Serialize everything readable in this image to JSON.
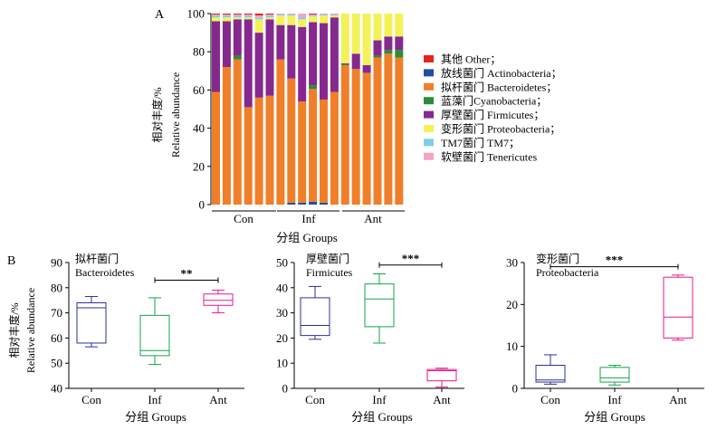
{
  "panel_labels": {
    "a": "A",
    "b": "B"
  },
  "colors": {
    "other": "#e52421",
    "actinobacteria": "#1f4fa0",
    "bacteroidetes": "#f07f2a",
    "cyanobacteria": "#2e8b3a",
    "firmicutes": "#85298f",
    "proteobacteria": "#f3f25a",
    "tm7": "#7fcfe0",
    "tenericutes": "#f2a6c7",
    "box_con": "#2e3192",
    "box_inf": "#13a54a",
    "box_ant": "#e6198c"
  },
  "chart_data": [
    {
      "type": "bar",
      "stacked": true,
      "panel": "A",
      "ylabel_cn": "相对丰度/%",
      "ylabel_en": "Relative abundance",
      "xlabel": "分组 Groups",
      "ylim": [
        0,
        100
      ],
      "yticks": [
        0,
        20,
        40,
        60,
        80,
        100
      ],
      "groups": [
        {
          "label": "Con",
          "count": 6
        },
        {
          "label": "Inf",
          "count": 6
        },
        {
          "label": "Ant",
          "count": 6
        }
      ],
      "legend": [
        {
          "key": "other",
          "label": "其他 Other；"
        },
        {
          "key": "actinobacteria",
          "label": "放线菌门 Actinobacteria；"
        },
        {
          "key": "bacteroidetes",
          "label": "拟杆菌门 Bacteroidetes；"
        },
        {
          "key": "cyanobacteria",
          "label": "蓝藻门Cyanobacteria；"
        },
        {
          "key": "firmicutes",
          "label": "厚壁菌门 Firmicutes；"
        },
        {
          "key": "proteobacteria",
          "label": "变形菌门 Proteobacteria；"
        },
        {
          "key": "tm7",
          "label": "TM7菌门 TM7；"
        },
        {
          "key": "tenericutes",
          "label": "软壁菌门 Tenericutes"
        }
      ],
      "series": [
        {
          "key": "actinobacteria",
          "values": [
            0,
            0,
            0,
            0,
            0,
            0,
            0,
            1,
            1,
            1.5,
            1,
            0,
            0,
            0,
            0,
            0,
            0,
            0
          ]
        },
        {
          "key": "bacteroidetes",
          "values": [
            59,
            72,
            76,
            51,
            56,
            57,
            76,
            65,
            53,
            59,
            54,
            59,
            73,
            71,
            69,
            77,
            79,
            77
          ]
        },
        {
          "key": "cyanobacteria",
          "values": [
            0,
            0,
            2,
            0,
            0,
            0,
            0,
            0,
            0,
            2,
            0,
            0,
            0.5,
            0,
            0,
            1,
            2,
            4
          ]
        },
        {
          "key": "firmicutes",
          "values": [
            37,
            24,
            19,
            46,
            34,
            40,
            18,
            28,
            39,
            33,
            40,
            39,
            0.5,
            8,
            4,
            8,
            7,
            7
          ]
        },
        {
          "key": "proteobacteria",
          "values": [
            2,
            2,
            1,
            1,
            7,
            1,
            5,
            5,
            4,
            3,
            4,
            1,
            26,
            21,
            27,
            14,
            12,
            12
          ]
        },
        {
          "key": "tm7",
          "values": [
            1,
            1,
            1,
            1,
            1,
            1,
            0.5,
            0.5,
            1,
            0.5,
            0.5,
            0.5,
            0,
            0,
            0,
            0,
            0,
            0
          ]
        },
        {
          "key": "tenericutes",
          "values": [
            0.5,
            0.5,
            0.5,
            0.5,
            1,
            0.5,
            0.5,
            0.5,
            2,
            0.5,
            0.5,
            0.5,
            0,
            0,
            0,
            0,
            0,
            0
          ]
        },
        {
          "key": "other",
          "values": [
            0.5,
            0.5,
            0.5,
            0.5,
            1,
            0.5,
            0,
            0,
            0,
            0.5,
            0,
            0,
            0,
            0,
            0,
            0,
            0,
            0
          ]
        }
      ]
    },
    {
      "type": "box",
      "panel": "B1",
      "title_cn": "拟杆菌门",
      "title_en": "Bacteroidetes",
      "ylabel_cn": "相对丰度/%",
      "ylabel_en": "Relative abundance",
      "xlabel": "分组 Groups",
      "ylim": [
        40,
        90
      ],
      "yticks": [
        40,
        50,
        60,
        70,
        80,
        90
      ],
      "categories": [
        "Con",
        "Inf",
        "Ant"
      ],
      "boxes": [
        {
          "min": 56.5,
          "q1": 58,
          "median": 72,
          "q3": 74,
          "max": 76.5
        },
        {
          "min": 49.5,
          "q1": 53,
          "median": 55,
          "q3": 69,
          "max": 76
        },
        {
          "min": 70,
          "q1": 73,
          "median": 75,
          "q3": 77.5,
          "max": 79
        }
      ],
      "significance": {
        "from": 1,
        "to": 2,
        "label": "**",
        "y": 83
      }
    },
    {
      "type": "box",
      "panel": "B2",
      "title_cn": "厚壁菌门",
      "title_en": "Firmicutes",
      "xlabel": "分组 Groups",
      "ylim": [
        0,
        50
      ],
      "yticks": [
        0,
        10,
        20,
        30,
        40,
        50
      ],
      "categories": [
        "Con",
        "Inf",
        "Ant"
      ],
      "boxes": [
        {
          "min": 19.5,
          "q1": 21,
          "median": 25,
          "q3": 36,
          "max": 40.5
        },
        {
          "min": 18,
          "q1": 24.5,
          "median": 35.5,
          "q3": 41.5,
          "max": 45.5
        },
        {
          "min": 0.5,
          "q1": 3,
          "median": 7,
          "q3": 7.5,
          "max": 8
        }
      ],
      "significance": {
        "from": 1,
        "to": 2,
        "label": "***",
        "y": 49
      }
    },
    {
      "type": "box",
      "panel": "B3",
      "title_cn": "变形菌门",
      "title_en": "Proteobacteria",
      "xlabel": "分组 Groups",
      "ylim": [
        0,
        30
      ],
      "yticks": [
        0,
        10,
        20,
        30
      ],
      "categories": [
        "Con",
        "Inf",
        "Ant"
      ],
      "boxes": [
        {
          "min": 1,
          "q1": 1.5,
          "median": 2,
          "q3": 5.5,
          "max": 8
        },
        {
          "min": 0.8,
          "q1": 1.5,
          "median": 2.5,
          "q3": 5,
          "max": 5.5
        },
        {
          "min": 11.5,
          "q1": 12,
          "median": 17,
          "q3": 26.5,
          "max": 27
        }
      ],
      "significance": {
        "from": 0,
        "to": 2,
        "label": "***",
        "y": 29
      }
    }
  ]
}
